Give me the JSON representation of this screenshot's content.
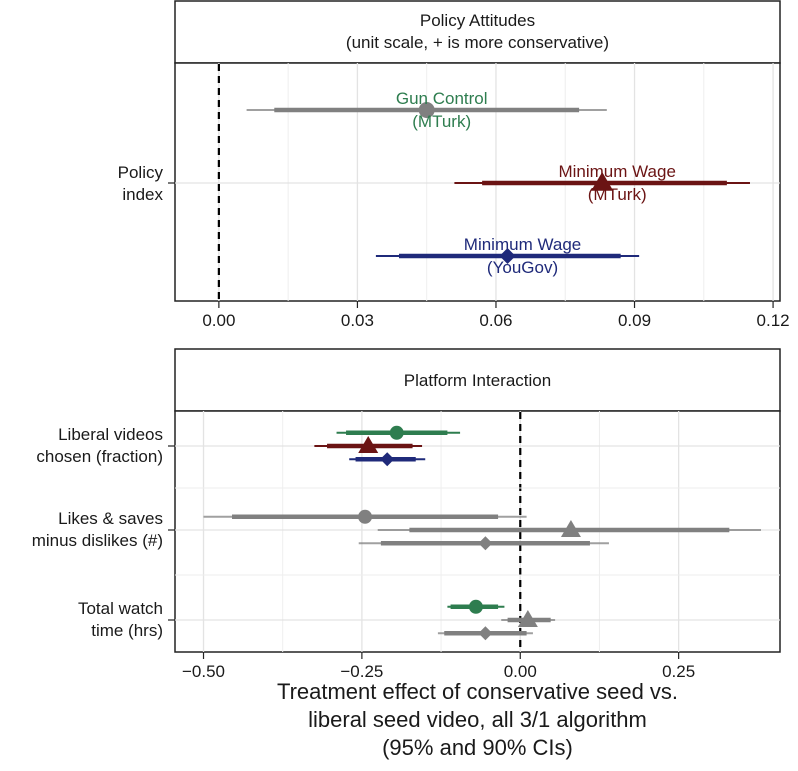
{
  "colors": {
    "gun_control_mturk": "#2E7D4F",
    "minimum_wage_mturk": "#6B1414",
    "minimum_wage_yougov": "#1F2A7A",
    "not_significant": "#808080",
    "grid": "#e3e3e3",
    "strip_border": "#222222",
    "zero_line": "#000000"
  },
  "chart_data": [
    {
      "type": "dot-and-whisker",
      "panel": "policy",
      "strip": {
        "line1": "Policy Attitudes",
        "line2": "(unit scale, + is more conservative)"
      },
      "y_categories": [
        {
          "line1": "Policy",
          "line2": "index"
        }
      ],
      "xlim": [
        -0.0095,
        0.1215
      ],
      "x_ticks": [
        0.0,
        0.03,
        0.06,
        0.09,
        0.12
      ],
      "x_tick_labels": [
        "0.00",
        "0.03",
        "0.06",
        "0.09",
        "0.12"
      ],
      "reference_line": 0,
      "points": [
        {
          "name": "Gun Control (MTurk)",
          "label1": "Gun Control",
          "label2": "(MTurk)",
          "label_color": "gun_control_mturk",
          "point_color": "not_significant",
          "shape": "circle",
          "estimate": 0.045,
          "ci95": [
            0.006,
            0.084
          ],
          "ci90": [
            0.012,
            0.078
          ],
          "row_offset": 0.73
        },
        {
          "name": "Minimum Wage (MTurk)",
          "label1": "Minimum Wage",
          "label2": "(MTurk)",
          "label_color": "minimum_wage_mturk",
          "point_color": "minimum_wage_mturk",
          "shape": "triangle",
          "estimate": 0.083,
          "ci95": [
            0.051,
            0.115
          ],
          "ci90": [
            0.057,
            0.11
          ],
          "row_offset": 0.0
        },
        {
          "name": "Minimum Wage (YouGov)",
          "label1": "Minimum Wage",
          "label2": "(YouGov)",
          "label_color": "minimum_wage_yougov",
          "point_color": "minimum_wage_yougov",
          "shape": "diamond",
          "estimate": 0.0625,
          "ci95": [
            0.034,
            0.091
          ],
          "ci90": [
            0.039,
            0.087
          ],
          "row_offset": -0.73
        }
      ]
    },
    {
      "type": "dot-and-whisker",
      "panel": "platform",
      "strip": {
        "line1": "Platform Interaction"
      },
      "y_categories": [
        {
          "line1": "Liberal videos",
          "line2": "chosen (fraction)"
        },
        {
          "line1": "Likes & saves",
          "line2": "minus dislikes (#)"
        },
        {
          "line1": "Total watch",
          "line2": "time (hrs)"
        }
      ],
      "xlim": [
        -0.545,
        0.41
      ],
      "x_ticks": [
        -0.5,
        -0.25,
        0.0,
        0.25
      ],
      "x_tick_labels": [
        "−0.50",
        "−0.25",
        "0.00",
        "0.25"
      ],
      "reference_line": 0,
      "xlabel": {
        "line1": "Treatment effect of conservative seed vs.",
        "line2": "liberal seed video, all 3/1 algorithm",
        "line3": "(95% and 90% CIs)"
      },
      "points": [
        {
          "category": 0,
          "name": "Gun Control (MTurk)",
          "color": "gun_control_mturk",
          "shape": "circle",
          "estimate": -0.195,
          "ci95": [
            -0.29,
            -0.095
          ],
          "ci90": [
            -0.275,
            -0.115
          ],
          "row_offset": 0.3
        },
        {
          "category": 0,
          "name": "Minimum Wage (MTurk)",
          "color": "minimum_wage_mturk",
          "shape": "triangle",
          "estimate": -0.24,
          "ci95": [
            -0.325,
            -0.155
          ],
          "ci90": [
            -0.305,
            -0.17
          ],
          "row_offset": 0.0
        },
        {
          "category": 0,
          "name": "Minimum Wage (YouGov)",
          "color": "minimum_wage_yougov",
          "shape": "diamond",
          "estimate": -0.21,
          "ci95": [
            -0.27,
            -0.15
          ],
          "ci90": [
            -0.26,
            -0.165
          ],
          "row_offset": -0.3
        },
        {
          "category": 1,
          "name": "Gun Control (MTurk)",
          "color": "not_significant",
          "shape": "circle",
          "estimate": -0.245,
          "ci95": [
            -0.5,
            0.01
          ],
          "ci90": [
            -0.455,
            -0.035
          ],
          "row_offset": 0.3
        },
        {
          "category": 1,
          "name": "Minimum Wage (MTurk)",
          "color": "not_significant",
          "shape": "triangle",
          "estimate": 0.08,
          "ci95": [
            -0.225,
            0.38
          ],
          "ci90": [
            -0.175,
            0.33
          ],
          "row_offset": 0.0
        },
        {
          "category": 1,
          "name": "Minimum Wage (YouGov)",
          "color": "not_significant",
          "shape": "diamond",
          "estimate": -0.055,
          "ci95": [
            -0.255,
            0.14
          ],
          "ci90": [
            -0.22,
            0.11
          ],
          "row_offset": -0.3
        },
        {
          "category": 2,
          "name": "Gun Control (MTurk)",
          "color": "gun_control_mturk",
          "shape": "circle",
          "estimate": -0.07,
          "ci95": [
            -0.115,
            -0.025
          ],
          "ci90": [
            -0.11,
            -0.035
          ],
          "row_offset": 0.3
        },
        {
          "category": 2,
          "name": "Minimum Wage (MTurk)",
          "color": "not_significant",
          "shape": "triangle",
          "estimate": 0.012,
          "ci95": [
            -0.03,
            0.055
          ],
          "ci90": [
            -0.02,
            0.048
          ],
          "row_offset": 0.0
        },
        {
          "category": 2,
          "name": "Minimum Wage (YouGov)",
          "color": "not_significant",
          "shape": "diamond",
          "estimate": -0.055,
          "ci95": [
            -0.13,
            0.02
          ],
          "ci90": [
            -0.12,
            0.01
          ],
          "row_offset": -0.3
        }
      ]
    }
  ]
}
